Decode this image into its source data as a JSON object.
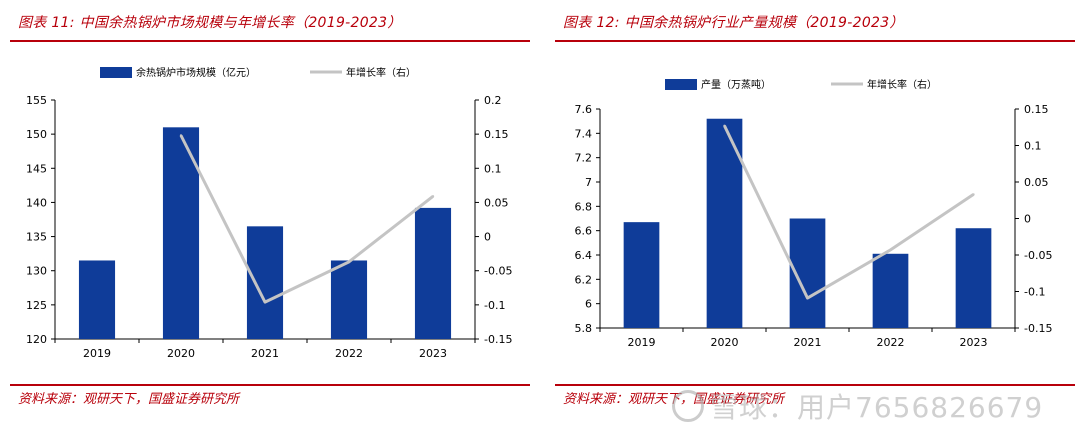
{
  "colors": {
    "bar": "#0f3c99",
    "line": "#c4c4c4",
    "title": "#b8000b",
    "axis": "#000000"
  },
  "panels": [
    {
      "title": "图表 11:  中国余热锅炉市场规模与年增长率（2019-2023）",
      "source": "资料来源：观研天下，国盛证券研究所"
    },
    {
      "title": "图表 12:  中国余热锅炉行业产量规模（2019-2023）",
      "source": "资料来源：观研天下，国盛证券研究所"
    }
  ],
  "watermark": "雪球：用户7656826679",
  "chart_data": [
    {
      "type": "bar",
      "categories": [
        "2019",
        "2020",
        "2021",
        "2022",
        "2023"
      ],
      "series": [
        {
          "name": "余热锅炉市场规模（亿元）",
          "type": "bar",
          "axis": "left",
          "values": [
            131.5,
            151,
            136.5,
            131.5,
            139.2
          ]
        },
        {
          "name": "年增长率（右）",
          "type": "line",
          "axis": "right",
          "values": [
            null,
            0.148,
            -0.096,
            -0.037,
            0.059
          ]
        }
      ],
      "yleft": {
        "min": 120,
        "max": 155,
        "ticks": [
          "120",
          "125",
          "130",
          "135",
          "140",
          "145",
          "150",
          "155"
        ]
      },
      "yright": {
        "min": -0.15,
        "max": 0.2,
        "ticks": [
          "-0.15",
          "-0.1",
          "-0.05",
          "0",
          "0.05",
          "0.1",
          "0.15",
          "0.2"
        ]
      }
    },
    {
      "type": "bar",
      "categories": [
        "2019",
        "2020",
        "2021",
        "2022",
        "2023"
      ],
      "series": [
        {
          "name": "产量（万蒸吨）",
          "type": "bar",
          "axis": "left",
          "values": [
            6.67,
            7.52,
            6.7,
            6.41,
            6.62
          ]
        },
        {
          "name": "年增长率（右）",
          "type": "line",
          "axis": "right",
          "values": [
            null,
            0.127,
            -0.109,
            -0.043,
            0.033
          ]
        }
      ],
      "yleft": {
        "min": 5.8,
        "max": 7.6,
        "ticks": [
          "5.8",
          "6",
          "6.2",
          "6.4",
          "6.6",
          "6.8",
          "7",
          "7.2",
          "7.4",
          "7.6"
        ]
      },
      "yright": {
        "min": -0.15,
        "max": 0.15,
        "ticks": [
          "-0.15",
          "-0.1",
          "-0.05",
          "0",
          "0.05",
          "0.1",
          "0.15"
        ]
      }
    }
  ]
}
